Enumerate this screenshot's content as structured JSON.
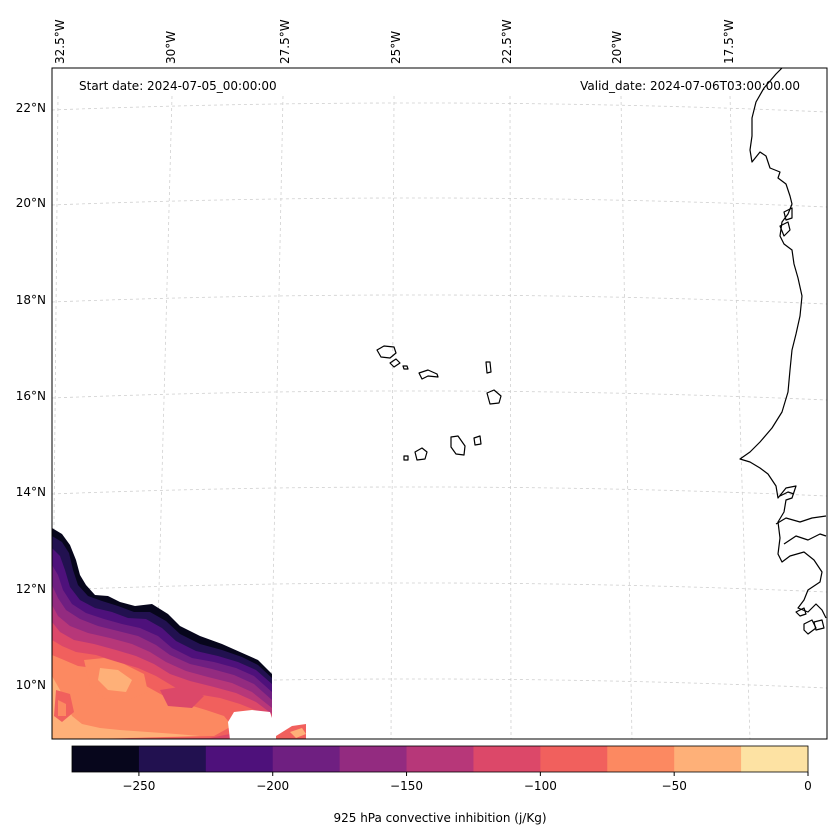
{
  "header": {
    "start_date": "Start date: 2024-07-05_00:00:00",
    "valid_date": "Valid_date: 2024-07-06T03:00:00.00"
  },
  "axes": {
    "lon_labels": [
      "32.5°W",
      "30°W",
      "27.5°W",
      "25°W",
      "22.5°W",
      "20°W",
      "17.5°W"
    ],
    "lat_labels": [
      "22°N",
      "20°N",
      "18°N",
      "16°N",
      "14°N",
      "12°N",
      "10°N"
    ]
  },
  "colorbar": {
    "label": "925 hPa convective inhibition (j/Kg)",
    "tick_labels": [
      "−250",
      "−200",
      "−150",
      "−100",
      "−50",
      "0"
    ],
    "levels": [
      -275,
      -250,
      -225,
      -200,
      -175,
      -150,
      -125,
      -100,
      -75,
      -50,
      -25,
      0
    ],
    "colors": [
      "#07061c",
      "#221150",
      "#4e117b",
      "#6f1f81",
      "#932b80",
      "#b73779",
      "#dc4869",
      "#f1605d",
      "#fc8961",
      "#feb078",
      "#fde2a3"
    ]
  },
  "chart_data": {
    "type": "heatmap",
    "title": "",
    "variable": "925 hPa convective inhibition",
    "units": "j/Kg",
    "start_date": "2024-07-05_00:00:00",
    "valid_date": "2024-07-06T03:00:00.00",
    "lon_range": [
      -33,
      -16.5
    ],
    "lat_range": [
      9,
      22.5
    ],
    "color_range": [
      -275,
      0
    ]
  }
}
